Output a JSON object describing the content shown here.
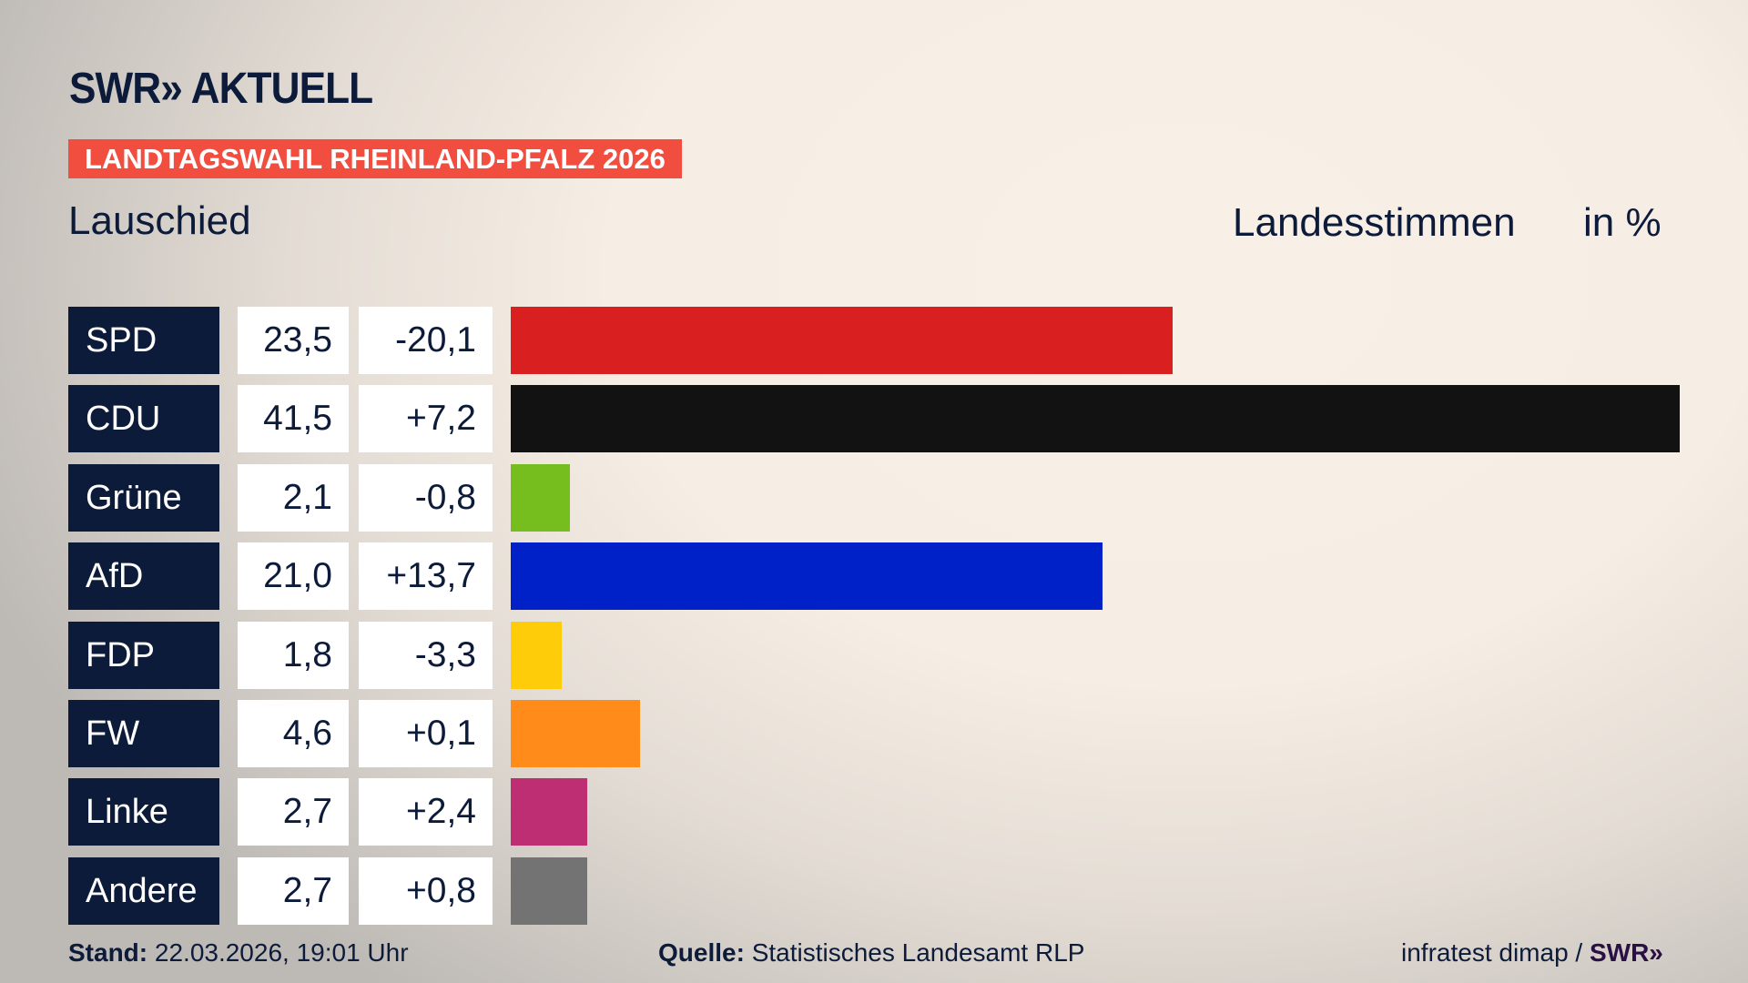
{
  "logo": "SWR» AKTUELL",
  "banner": "LANDTAGSWAHL RHEINLAND-PFALZ 2026",
  "place": "Lauschied",
  "measure": "Landesstimmen",
  "unit": "in %",
  "chart_data": {
    "type": "bar",
    "orientation": "horizontal",
    "categories": [
      "SPD",
      "CDU",
      "Grüne",
      "AfD",
      "FDP",
      "FW",
      "Linke",
      "Andere"
    ],
    "values": [
      23.5,
      41.5,
      2.1,
      21.0,
      1.8,
      4.6,
      2.7,
      2.7
    ],
    "value_labels": [
      "23,5",
      "41,5",
      "2,1",
      "21,0",
      "1,8",
      "4,6",
      "2,7",
      "2,7"
    ],
    "change_labels": [
      "-20,1",
      "+7,2",
      "-0,8",
      "+13,7",
      "-3,3",
      "+0,1",
      "+2,4",
      "+0,8"
    ],
    "changes": [
      -20.1,
      7.2,
      -0.8,
      13.7,
      -3.3,
      0.1,
      2.4,
      0.8
    ],
    "colors": [
      "#d91f1f",
      "#121212",
      "#76bd1e",
      "#0020c8",
      "#ffcc0a",
      "#ff8c1a",
      "#bd2f72",
      "#737373"
    ],
    "xlim": [
      0,
      41.5
    ]
  },
  "footer": {
    "stand_label": "Stand:",
    "stand_value": " 22.03.2026, 19:01 Uhr",
    "source_label": "Quelle:",
    "source_value": " Statistisches Landesamt RLP",
    "credit": "infratest dimap / ",
    "credit_logo": "SWR»"
  }
}
